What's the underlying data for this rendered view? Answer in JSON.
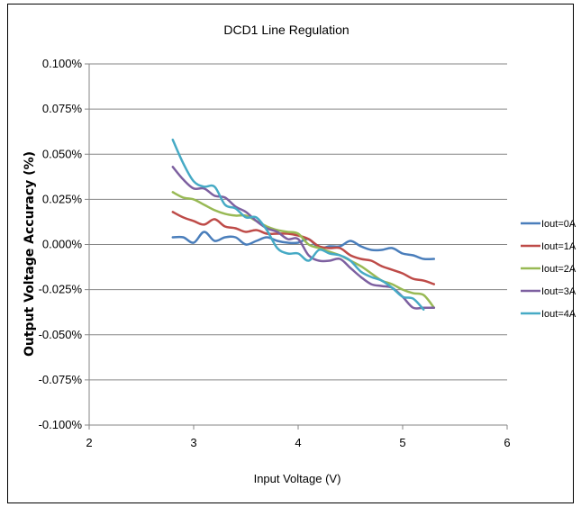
{
  "chart_data": {
    "type": "line",
    "title": "DCD1 Line Regulation",
    "xlabel": "Input Voltage (V)",
    "ylabel": "Output Voltage Accuracy (%)",
    "xlim": [
      2,
      6
    ],
    "ylim": [
      -0.1,
      0.1
    ],
    "x_ticks": [
      "2",
      "3",
      "4",
      "5",
      "6"
    ],
    "y_ticks": [
      "0.100%",
      "0.075%",
      "0.050%",
      "0.025%",
      "0.000%",
      "-0.025%",
      "-0.050%",
      "-0.075%",
      "-0.100%"
    ],
    "grid": "horizontal",
    "legend_position": "right",
    "series": [
      {
        "name": "Iout=0A",
        "color": "#4a7ebb",
        "x": [
          2.8,
          2.9,
          3.0,
          3.1,
          3.2,
          3.3,
          3.4,
          3.5,
          3.6,
          3.7,
          3.8,
          3.9,
          4.0,
          4.1,
          4.2,
          4.3,
          4.4,
          4.5,
          4.6,
          4.7,
          4.8,
          4.9,
          5.0,
          5.1,
          5.2,
          5.3
        ],
        "y": [
          0.004,
          0.004,
          0.001,
          0.007,
          0.002,
          0.004,
          0.004,
          0.0,
          0.002,
          0.004,
          0.002,
          0.001,
          0.001,
          0.003,
          -0.002,
          -0.001,
          -0.001,
          0.002,
          -0.001,
          -0.003,
          -0.003,
          -0.002,
          -0.005,
          -0.006,
          -0.008,
          -0.008
        ]
      },
      {
        "name": "Iout=1A",
        "color": "#be4b48",
        "x": [
          2.8,
          2.9,
          3.0,
          3.1,
          3.2,
          3.3,
          3.4,
          3.5,
          3.6,
          3.7,
          3.8,
          3.9,
          4.0,
          4.1,
          4.2,
          4.3,
          4.4,
          4.5,
          4.6,
          4.7,
          4.8,
          4.9,
          5.0,
          5.1,
          5.2,
          5.3
        ],
        "y": [
          0.018,
          0.015,
          0.013,
          0.011,
          0.014,
          0.01,
          0.009,
          0.007,
          0.008,
          0.006,
          0.006,
          0.006,
          0.005,
          0.003,
          -0.001,
          -0.002,
          -0.002,
          -0.006,
          -0.008,
          -0.009,
          -0.012,
          -0.014,
          -0.016,
          -0.019,
          -0.02,
          -0.022
        ]
      },
      {
        "name": "Iout=2A",
        "color": "#98b954",
        "x": [
          2.8,
          2.9,
          3.0,
          3.1,
          3.2,
          3.3,
          3.4,
          3.5,
          3.6,
          3.7,
          3.8,
          3.9,
          4.0,
          4.1,
          4.2,
          4.3,
          4.4,
          4.5,
          4.6,
          4.7,
          4.8,
          4.9,
          5.0,
          5.1,
          5.2,
          5.3
        ],
        "y": [
          0.029,
          0.026,
          0.025,
          0.022,
          0.019,
          0.017,
          0.016,
          0.016,
          0.013,
          0.01,
          0.008,
          0.007,
          0.006,
          0.0,
          -0.002,
          -0.004,
          -0.006,
          -0.009,
          -0.012,
          -0.016,
          -0.02,
          -0.022,
          -0.025,
          -0.027,
          -0.028,
          -0.035
        ]
      },
      {
        "name": "Iout=3A",
        "color": "#7d60a0",
        "x": [
          2.8,
          2.9,
          3.0,
          3.1,
          3.2,
          3.3,
          3.4,
          3.5,
          3.6,
          3.7,
          3.8,
          3.9,
          4.0,
          4.1,
          4.2,
          4.3,
          4.4,
          4.5,
          4.6,
          4.7,
          4.8,
          4.9,
          5.0,
          5.1,
          5.2,
          5.3
        ],
        "y": [
          0.043,
          0.036,
          0.031,
          0.031,
          0.027,
          0.026,
          0.021,
          0.018,
          0.013,
          0.009,
          0.007,
          0.003,
          0.003,
          -0.006,
          -0.009,
          -0.009,
          -0.008,
          -0.013,
          -0.018,
          -0.022,
          -0.023,
          -0.024,
          -0.029,
          -0.035,
          -0.035,
          -0.035
        ]
      },
      {
        "name": "Iout=4A",
        "color": "#46aac5",
        "x": [
          2.8,
          2.9,
          3.0,
          3.1,
          3.2,
          3.3,
          3.4,
          3.5,
          3.6,
          3.7,
          3.8,
          3.9,
          4.0,
          4.1,
          4.2,
          4.3,
          4.4,
          4.5,
          4.6,
          4.7,
          4.8,
          4.9,
          5.0,
          5.1,
          5.2
        ],
        "y": [
          0.058,
          0.045,
          0.035,
          0.032,
          0.032,
          0.022,
          0.02,
          0.015,
          0.015,
          0.008,
          -0.002,
          -0.005,
          -0.005,
          -0.009,
          -0.003,
          -0.005,
          -0.006,
          -0.009,
          -0.015,
          -0.018,
          -0.02,
          -0.024,
          -0.029,
          -0.03,
          -0.036
        ]
      }
    ]
  }
}
